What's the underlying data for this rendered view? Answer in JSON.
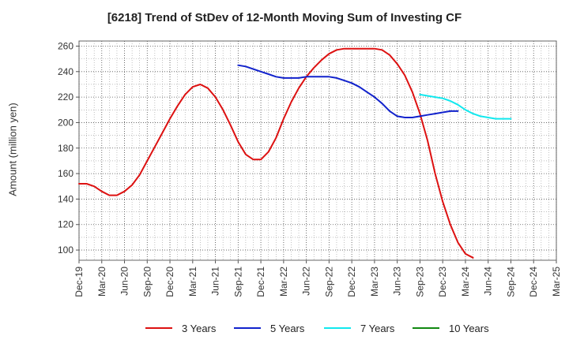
{
  "chart_data": {
    "type": "line",
    "title": "[6218]  Trend of StDev of 12-Month Moving Sum of Investing CF",
    "xlabel": "",
    "ylabel": "Amount (million yen)",
    "ylim": [
      92,
      264
    ],
    "yticks": [
      100,
      120,
      140,
      160,
      180,
      200,
      220,
      240,
      260
    ],
    "xlim": [
      "Dec-19",
      "Mar-25"
    ],
    "xticks": [
      "Dec-19",
      "Mar-20",
      "Jun-20",
      "Sep-20",
      "Dec-20",
      "Mar-21",
      "Jun-21",
      "Sep-21",
      "Dec-21",
      "Mar-22",
      "Jun-22",
      "Sep-22",
      "Dec-22",
      "Mar-23",
      "Jun-23",
      "Sep-23",
      "Dec-23",
      "Mar-24",
      "Jun-24",
      "Sep-24",
      "Dec-24",
      "Mar-25"
    ],
    "grid": true,
    "legend": "bottom",
    "series": [
      {
        "name": "3 Years",
        "color": "#dd1111",
        "start": "Dec-19",
        "values": [
          152,
          152,
          150,
          146,
          143,
          143,
          146,
          151,
          159,
          170,
          181,
          192,
          203,
          213,
          222,
          228,
          230,
          227,
          220,
          210,
          198,
          185,
          175,
          171,
          171,
          177,
          188,
          203,
          216,
          227,
          236,
          243,
          249,
          254,
          257,
          258,
          258,
          258,
          258,
          258,
          257,
          253,
          246,
          237,
          224,
          207,
          186,
          160,
          138,
          120,
          106,
          97,
          94
        ]
      },
      {
        "name": "5 Years",
        "color": "#1122cc",
        "start": "Sep-21",
        "values": [
          245,
          244,
          242,
          240,
          238,
          236,
          235,
          235,
          235,
          236,
          236,
          236,
          236,
          235,
          233,
          231,
          228,
          224,
          220,
          215,
          209,
          205,
          204,
          204,
          205,
          206,
          207,
          208,
          209,
          209
        ]
      },
      {
        "name": "7 Years",
        "color": "#11e8ee",
        "start": "Sep-23",
        "values": [
          222,
          221,
          220,
          219,
          217,
          214,
          210,
          207,
          205,
          204,
          203,
          203,
          203
        ]
      },
      {
        "name": "10 Years",
        "color": "#118811",
        "start": "Sep-24",
        "values": []
      }
    ]
  }
}
